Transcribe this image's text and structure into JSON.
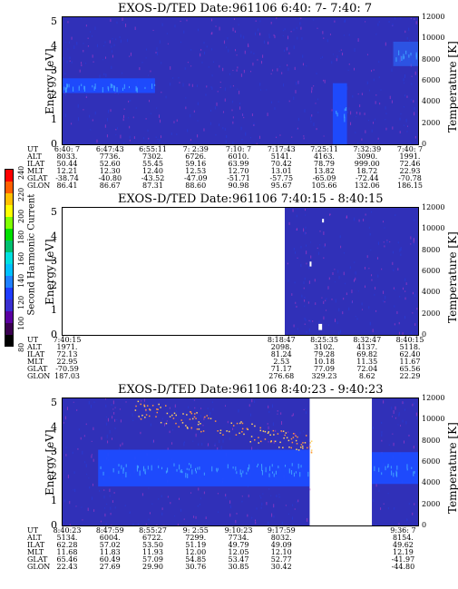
{
  "chart_data": [
    {
      "type": "heatmap",
      "title": "EXOS-D/TED   Date:961106  6:40: 7- 7:40: 7",
      "ylabel": "Energy [eV]",
      "ylabel_right": "Temperature [K]",
      "yticks": [
        "0",
        "1",
        "2",
        "3",
        "4",
        "5"
      ],
      "yticks_right": [
        "0",
        "2000",
        "4000",
        "6000",
        "8000",
        "10000",
        "12000"
      ],
      "ylim": [
        0,
        5.2
      ],
      "ylim_right": [
        0,
        12000
      ],
      "data_coverage": [
        [
          0,
          1
        ]
      ],
      "features": [
        {
          "x_range": [
            0.0,
            0.26
          ],
          "energy_range": [
            2.1,
            2.7
          ],
          "level": "high"
        },
        {
          "x_range": [
            0.76,
            0.8
          ],
          "energy_range": [
            0.0,
            2.5
          ],
          "level": "high"
        },
        {
          "x_range": [
            0.93,
            1.0
          ],
          "energy_range": [
            3.2,
            4.2
          ],
          "level": "medium"
        }
      ],
      "rows": [
        {
          "label": "UT",
          "values": [
            "6:40: 7",
            "6:47:43",
            "6:55:11",
            "7: 2:39",
            "7:10: 7",
            "7:17:43",
            "7:25:11",
            "7:32:39",
            "7:40: 7"
          ]
        },
        {
          "label": "ALT",
          "values": [
            "8033.",
            "7736.",
            "7302.",
            "6726.",
            "6010.",
            "5141.",
            "4163.",
            "3090.",
            "1991."
          ]
        },
        {
          "label": "ILAT",
          "values": [
            "50.44",
            "52.60",
            "55.45",
            "59.16",
            "63.99",
            "70.42",
            "78.79",
            "999.00",
            "72.46"
          ]
        },
        {
          "label": "MLT",
          "values": [
            "12.21",
            "12.30",
            "12.40",
            "12.53",
            "12.70",
            "13.01",
            "13.82",
            "18.72",
            "22.93"
          ]
        },
        {
          "label": "GLAT",
          "values": [
            "-38.74",
            "-40.80",
            "-43.52",
            "-47.09",
            "-51.71",
            "-57.75",
            "-65.09",
            "-72.44",
            "-70.78"
          ]
        },
        {
          "label": "GLON",
          "values": [
            "86.41",
            "86.67",
            "87.31",
            "88.60",
            "90.98",
            "95.67",
            "105.66",
            "132.06",
            "186.15"
          ]
        }
      ],
      "columns": [
        0.0,
        0.125,
        0.25,
        0.375,
        0.5,
        0.625,
        0.75,
        0.875,
        1.0
      ]
    },
    {
      "type": "heatmap",
      "title": "EXOS-D/TED   Date:961106  7:40:15 - 8:40:15",
      "ylabel": "Energy [eV]",
      "ylabel_right": "Temperature [K]",
      "yticks": [
        "0",
        "1",
        "2",
        "3",
        "4",
        "5"
      ],
      "yticks_right": [
        "0",
        "2000",
        "4000",
        "6000",
        "8000",
        "10000",
        "12000"
      ],
      "ylim": [
        0,
        5.2
      ],
      "ylim_right": [
        0,
        12000
      ],
      "data_coverage": [
        [
          0.625,
          1
        ]
      ],
      "features": [
        {
          "x_range": [
            0.72,
            0.73
          ],
          "energy_range": [
            0.2,
            0.45
          ],
          "level": "saturated"
        },
        {
          "x_range": [
            0.695,
            0.7
          ],
          "energy_range": [
            2.8,
            3.0
          ],
          "level": "saturated"
        },
        {
          "x_range": [
            0.73,
            0.735
          ],
          "energy_range": [
            4.6,
            4.75
          ],
          "level": "saturated"
        }
      ],
      "rows": [
        {
          "label": "UT",
          "values": [
            "7:40:15",
            "",
            "",
            "",
            "",
            "8:18:47",
            "8:25:35",
            "8:32:47",
            "8:40:15"
          ]
        },
        {
          "label": "ALT",
          "values": [
            "1971.",
            "",
            "",
            "",
            "",
            "2098.",
            "3102.",
            "4137.",
            "5118."
          ]
        },
        {
          "label": "ILAT",
          "values": [
            "72.13",
            "",
            "",
            "",
            "",
            "81.24",
            "79.28",
            "69.82",
            "62.40"
          ]
        },
        {
          "label": "MLT",
          "values": [
            "22.95",
            "",
            "",
            "",
            "",
            "2.53",
            "10.18",
            "11.35",
            "11.67"
          ]
        },
        {
          "label": "GLAT",
          "values": [
            "-70.59",
            "",
            "",
            "",
            "",
            "71.17",
            "77.09",
            "72.04",
            "65.56"
          ]
        },
        {
          "label": "GLON",
          "values": [
            "187.03",
            "",
            "",
            "",
            "",
            "276.68",
            "329.23",
            "8.62",
            "22.29"
          ]
        }
      ],
      "columns": [
        0.0,
        0.125,
        0.25,
        0.375,
        0.5,
        0.625,
        0.75,
        0.875,
        1.0
      ]
    },
    {
      "type": "heatmap",
      "title": "EXOS-D/TED   Date:961106  8:40:23 - 9:40:23",
      "ylabel": "Energy [eV]",
      "ylabel_right": "Temperature [K]",
      "yticks": [
        "0",
        "1",
        "2",
        "3",
        "4",
        "5"
      ],
      "yticks_right": [
        "0",
        "2000",
        "4000",
        "6000",
        "8000",
        "10000",
        "12000"
      ],
      "ylim": [
        0,
        5.2
      ],
      "ylim_right": [
        0,
        12000
      ],
      "data_coverage": [
        [
          0,
          0.695
        ],
        [
          0.87,
          1
        ]
      ],
      "features": [
        {
          "x_range": [
            0.1,
            0.695
          ],
          "energy_range": [
            1.6,
            3.1
          ],
          "level": "high"
        },
        {
          "x_range": [
            0.87,
            1.0
          ],
          "energy_range": [
            1.7,
            3.0
          ],
          "level": "high"
        },
        {
          "x_range": [
            0.2,
            0.7
          ],
          "energy_range": [
            3.0,
            5.2
          ],
          "level": "scatter"
        }
      ],
      "rows": [
        {
          "label": "UT",
          "values": [
            "8:40:23",
            "8:47:59",
            "8:55:27",
            "9: 2:55",
            "9:10:23",
            "9:17:59",
            "",
            "",
            "9:36: 7"
          ]
        },
        {
          "label": "ALT",
          "values": [
            "5134.",
            "6004.",
            "6722.",
            "7299.",
            "7734.",
            "8032.",
            "",
            "",
            "8154."
          ]
        },
        {
          "label": "ILAT",
          "values": [
            "62.28",
            "57.02",
            "53.50",
            "51.19",
            "49.79",
            "49.09",
            "",
            "",
            "49.62"
          ]
        },
        {
          "label": "MLT",
          "values": [
            "11.68",
            "11.83",
            "11.93",
            "12.00",
            "12.05",
            "12.10",
            "",
            "",
            "12.19"
          ]
        },
        {
          "label": "GLAT",
          "values": [
            "65.46",
            "60.49",
            "57.09",
            "54.85",
            "53.47",
            "52.77",
            "",
            "",
            "-41.97"
          ]
        },
        {
          "label": "GLON",
          "values": [
            "22.43",
            "27.69",
            "29.90",
            "30.76",
            "30.85",
            "30.42",
            "",
            "",
            "-44.80"
          ]
        }
      ],
      "columns": [
        0.0,
        0.125,
        0.25,
        0.375,
        0.5,
        0.625,
        0.75,
        0.875,
        0.98
      ]
    }
  ],
  "colorbar": {
    "label": "Second Harmonic Current",
    "ticks": [
      "80",
      "100",
      "120",
      "140",
      "160",
      "180",
      "200",
      "220",
      "240"
    ],
    "colors": [
      "#000000",
      "#3a0050",
      "#5a00a0",
      "#3a2fd0",
      "#1f3cff",
      "#1f80ff",
      "#00c0ff",
      "#00e0e0",
      "#00c070",
      "#00e000",
      "#80ff00",
      "#ffff00",
      "#ffc000",
      "#ff6000",
      "#ff0000"
    ]
  },
  "colors": {
    "background": "#3030b8",
    "band": "#1e4cff",
    "saturated": "#ffffff",
    "noise": "#c83cc8"
  }
}
